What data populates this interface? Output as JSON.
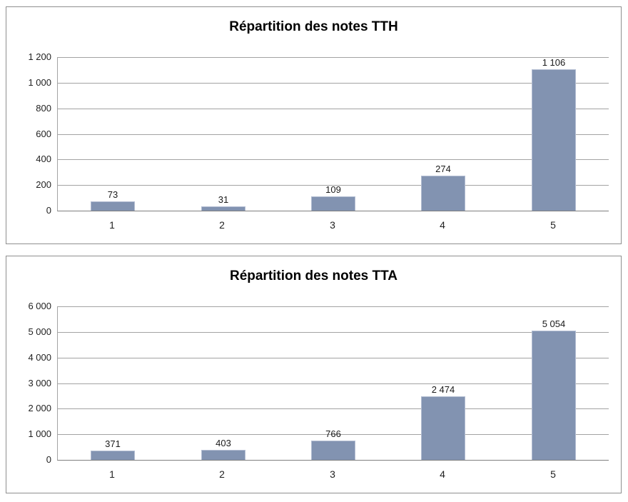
{
  "page": {
    "background_color": "#ffffff"
  },
  "style": {
    "bar_fill_color": "#8293b1",
    "bar_border_color": "#b3bdd2",
    "gridline_color": "#a3a3a3",
    "axis_line_color": "#7f7f7f",
    "chart_border_color": "#8f8f8f",
    "title_color": "#000000",
    "label_color": "#1f1f1f"
  },
  "chart_data": [
    {
      "type": "bar",
      "title": "Répartition des notes TTH",
      "categories": [
        "1",
        "2",
        "3",
        "4",
        "5"
      ],
      "values": [
        73,
        31,
        109,
        274,
        1106
      ],
      "value_labels": [
        "73",
        "31",
        "109",
        "274",
        "1 106"
      ],
      "y_ticks": [
        "1 200",
        "1 000",
        "800",
        "600",
        "400",
        "200",
        "0"
      ],
      "ylim": [
        0,
        1200
      ],
      "xlabel": "",
      "ylabel": "",
      "grid": true,
      "legend": false
    },
    {
      "type": "bar",
      "title": "Répartition des notes TTA",
      "categories": [
        "1",
        "2",
        "3",
        "4",
        "5"
      ],
      "values": [
        371,
        403,
        766,
        2474,
        5054
      ],
      "value_labels": [
        "371",
        "403",
        "766",
        "2 474",
        "5 054"
      ],
      "y_ticks": [
        "6 000",
        "5 000",
        "4 000",
        "3 000",
        "2 000",
        "1 000",
        "0"
      ],
      "ylim": [
        0,
        6000
      ],
      "xlabel": "",
      "ylabel": "",
      "grid": true,
      "legend": false
    }
  ]
}
